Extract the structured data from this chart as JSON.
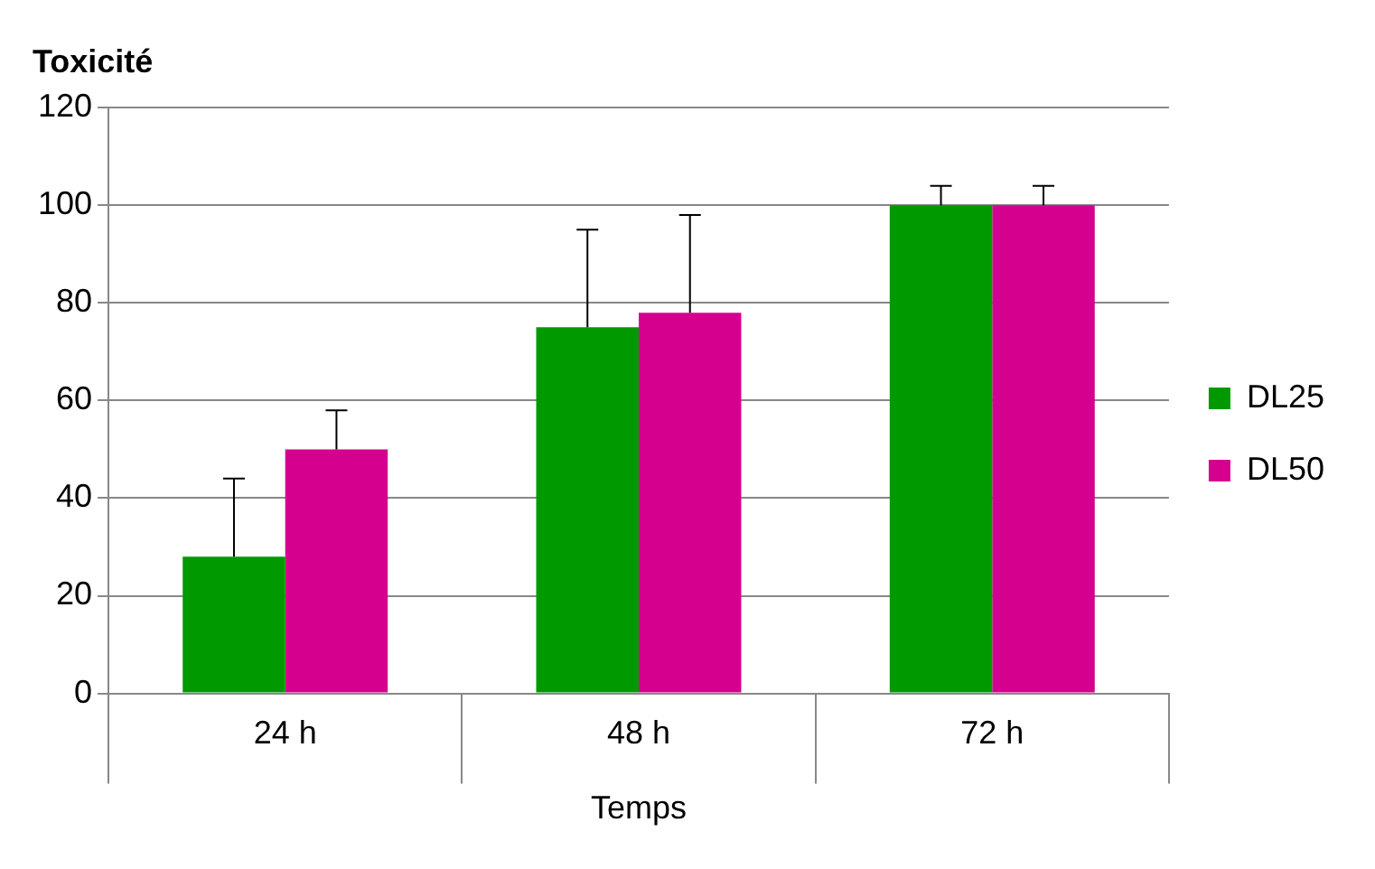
{
  "chart_data": {
    "type": "bar",
    "title": "Toxicité",
    "xlabel": "Temps",
    "categories": [
      "24 h",
      "48 h",
      "72 h"
    ],
    "series": [
      {
        "name": "DL25",
        "color": "#009900",
        "values": [
          28,
          75,
          100
        ],
        "errors": [
          [
            28,
            44
          ],
          [
            75,
            95
          ],
          [
            100,
            104
          ]
        ]
      },
      {
        "name": "DL50",
        "color": "#d6008f",
        "values": [
          50,
          78,
          100
        ],
        "errors": [
          [
            50,
            58
          ],
          [
            78,
            98
          ],
          [
            100,
            104
          ]
        ]
      }
    ],
    "ylim": [
      0,
      120
    ],
    "yticks": [
      0,
      20,
      40,
      60,
      80,
      100,
      120
    ],
    "grid": "y",
    "legend": "right"
  }
}
